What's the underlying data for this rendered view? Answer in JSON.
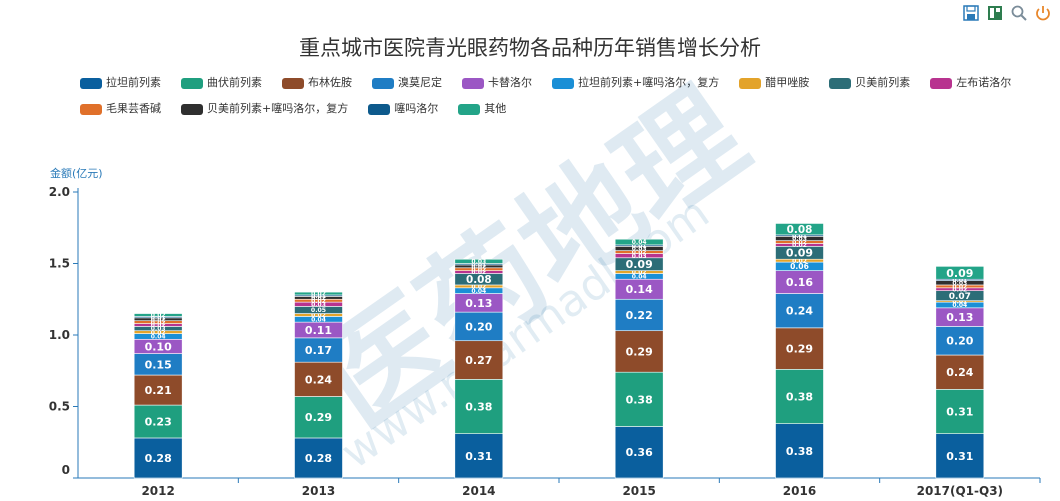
{
  "toolbar": {
    "icons": [
      "save-icon",
      "data-view-icon",
      "zoom-icon",
      "restore-icon"
    ],
    "colors": [
      "#2a7ab8",
      "#2e7d4f",
      "#7a8c99",
      "#e8872b"
    ]
  },
  "watermark": {
    "text": "医药地理",
    "url": "www.pharmadl.com"
  },
  "chart_data": {
    "type": "bar",
    "stacked": true,
    "title": "重点城市医院青光眼药物各品种历年销售增长分析",
    "ylabel": "金额(亿元)",
    "xlabel": "",
    "ylim": [
      0,
      2.0
    ],
    "yticks": [
      "0",
      "0.5",
      "1.0",
      "1.5",
      "2.0"
    ],
    "categories": [
      "2012",
      "2013",
      "2014",
      "2015",
      "2016",
      "2017(Q1-Q3)"
    ],
    "legend_position": "top-left",
    "grid": false,
    "series": [
      {
        "name": "拉坦前列素",
        "color": "#0a5f9e",
        "values": [
          0.28,
          0.28,
          0.31,
          0.36,
          0.38,
          0.31
        ]
      },
      {
        "name": "曲伏前列素",
        "color": "#1f9f7f",
        "values": [
          0.23,
          0.29,
          0.38,
          0.38,
          0.38,
          0.31
        ]
      },
      {
        "name": "布林佐胺",
        "color": "#8e4b2a",
        "values": [
          0.21,
          0.24,
          0.27,
          0.29,
          0.29,
          0.24
        ]
      },
      {
        "name": "溴莫尼定",
        "color": "#1f7dc4",
        "values": [
          0.15,
          0.17,
          0.2,
          0.22,
          0.24,
          0.2
        ]
      },
      {
        "name": "卡替洛尔",
        "color": "#9b57c4",
        "values": [
          0.1,
          0.11,
          0.13,
          0.14,
          0.16,
          0.13
        ]
      },
      {
        "name": "拉坦前列素+噻吗洛尔，复方",
        "color": "#1a8fd6",
        "values": [
          0.04,
          0.04,
          0.04,
          0.04,
          0.06,
          0.04
        ]
      },
      {
        "name": "醋甲唑胺",
        "color": "#e3a32a",
        "values": [
          0.02,
          0.02,
          0.02,
          0.02,
          0.02,
          0.01
        ]
      },
      {
        "name": "贝美前列素",
        "color": "#2c6d77",
        "values": [
          0.03,
          0.05,
          0.08,
          0.09,
          0.09,
          0.07
        ]
      },
      {
        "name": "左布诺洛尔",
        "color": "#b8338f",
        "values": [
          0.02,
          0.03,
          0.02,
          0.03,
          0.02,
          0.02
        ]
      },
      {
        "name": "毛果芸香碱",
        "color": "#e0702a",
        "values": [
          0.02,
          0.02,
          0.02,
          0.02,
          0.02,
          0.02
        ]
      },
      {
        "name": "贝美前列素+噻吗洛尔，复方",
        "color": "#2f2f2f",
        "values": [
          0.02,
          0.02,
          0.02,
          0.03,
          0.03,
          0.03
        ]
      },
      {
        "name": "噻吗洛尔",
        "color": "#0d5a8c",
        "values": [
          0.01,
          0.01,
          0.01,
          0.01,
          0.01,
          0.01
        ]
      },
      {
        "name": "其他",
        "color": "#23a488",
        "values": [
          0.02,
          0.02,
          0.03,
          0.04,
          0.08,
          0.09
        ]
      }
    ]
  }
}
